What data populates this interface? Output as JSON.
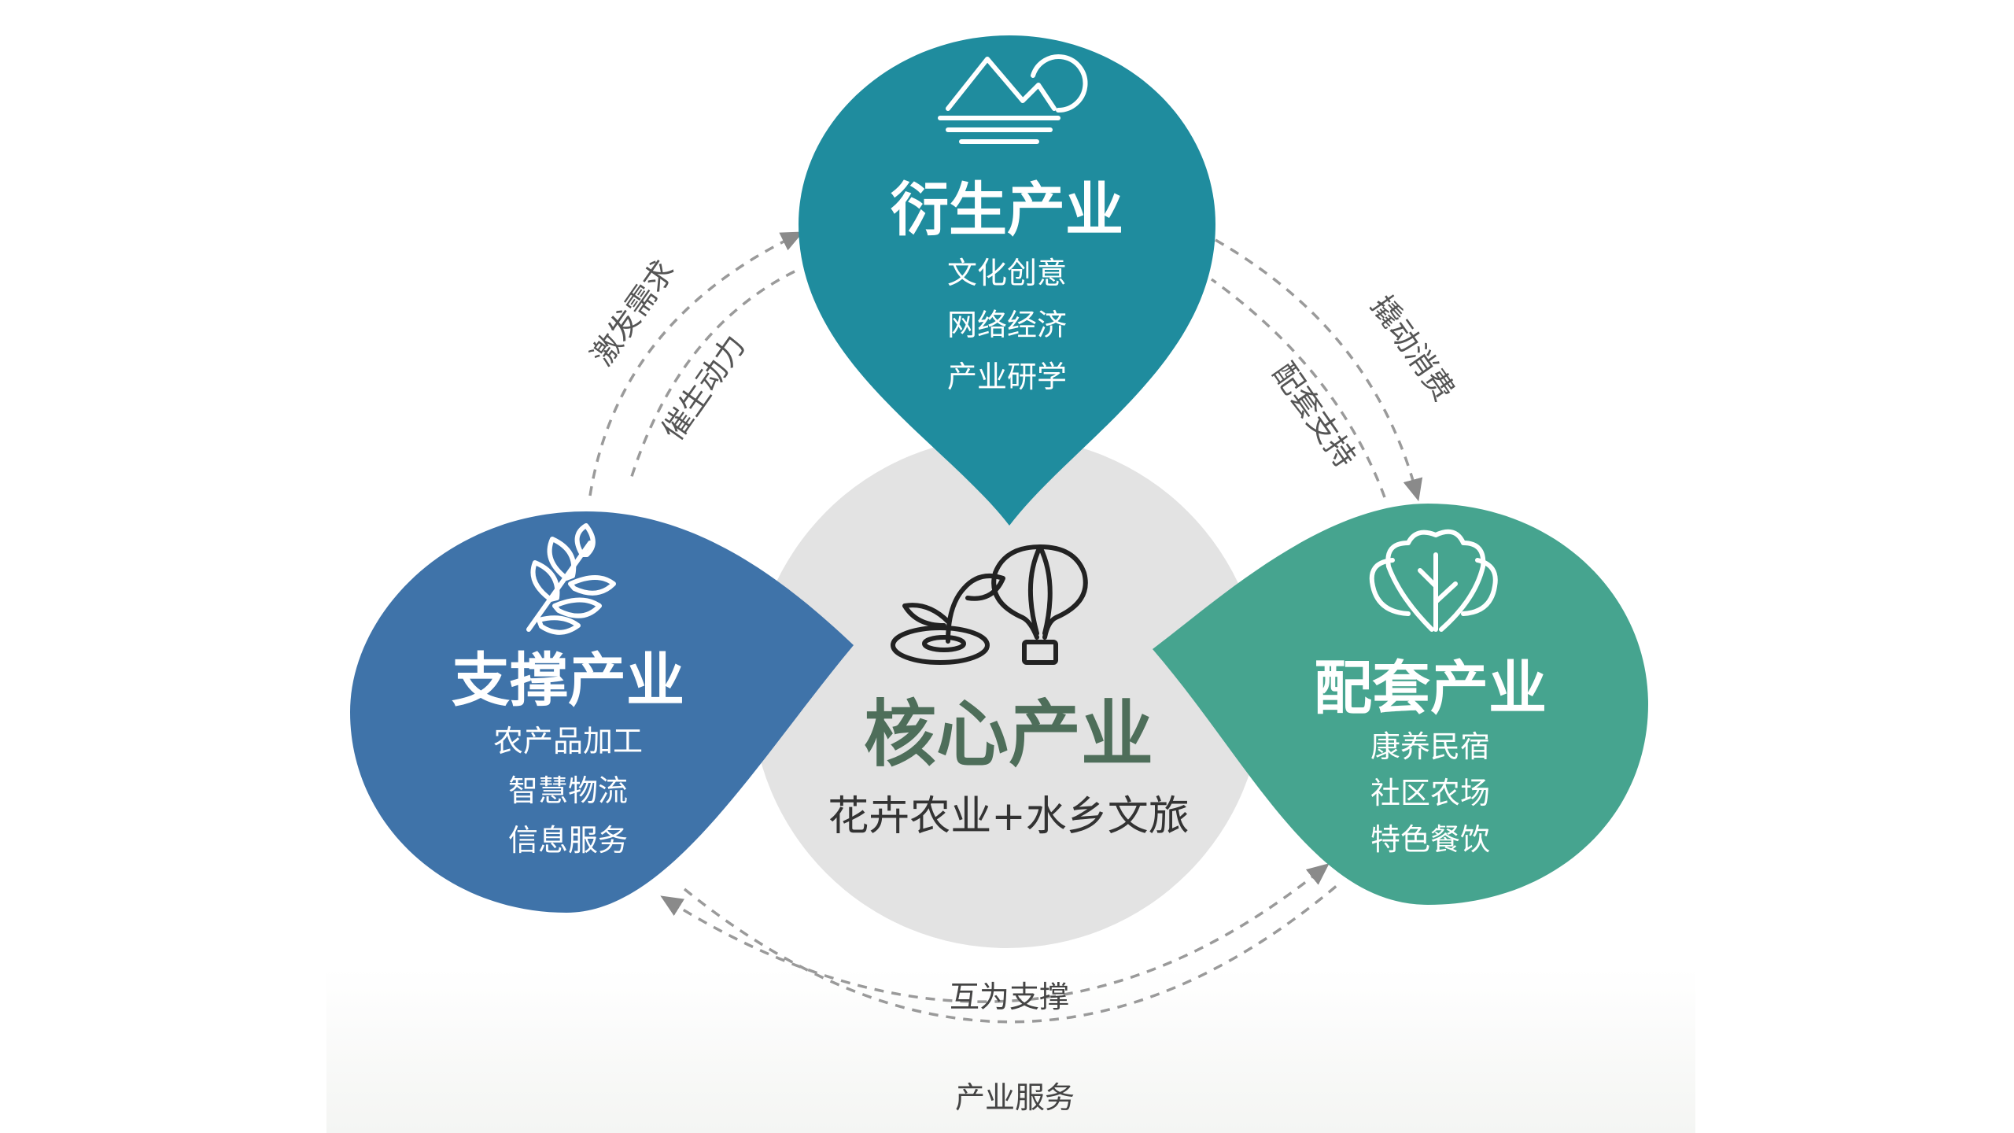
{
  "core": {
    "title": "核心产业",
    "subtitle": "花卉农业+水乡文旅",
    "color": "#4e6e5a",
    "bg": "#e3e3e3"
  },
  "top": {
    "title": "衍生产业",
    "items": [
      "文化创意",
      "网络经济",
      "产业研学"
    ],
    "color": "#1f8c9e"
  },
  "left": {
    "title": "支撑产业",
    "items": [
      "农产品加工",
      "智慧物流",
      "信息服务"
    ],
    "color": "#3f73a9"
  },
  "right": {
    "title": "配套产业",
    "items": [
      "康养民宿",
      "社区农场",
      "特色餐饮"
    ],
    "color": "#46a48f"
  },
  "arrows": {
    "left_outer": "激发需求",
    "left_inner": "催生动力",
    "right_outer": "撬动消费",
    "right_inner": "配套支持",
    "bottom_inner": "互为支撑",
    "bottom_outer": "产业服务"
  },
  "icons": {
    "top": "mountain-sun-icon",
    "left": "leaf-branch-icon",
    "right": "vegetable-icon",
    "core_a": "sprout-icon",
    "core_b": "hot-air-balloon-icon"
  }
}
